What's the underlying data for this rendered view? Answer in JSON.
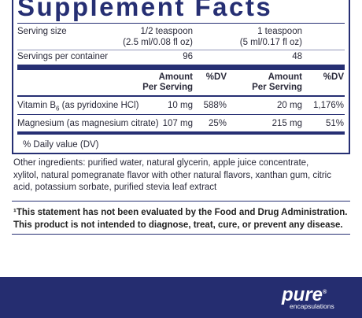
{
  "title": "Supplement Facts",
  "serving": {
    "label": "Serving size",
    "a_line1": "1/2 teaspoon",
    "a_line2": "(2.5 ml/0.08 fl oz)",
    "b_line1": "1 teaspoon",
    "b_line2": "(5 ml/0.17 fl oz)"
  },
  "servings_per_container": {
    "label": "Servings per container",
    "a": "96",
    "b": "48"
  },
  "header": {
    "amount_line1": "Amount",
    "amount_line2": "Per Serving",
    "dv": "%DV"
  },
  "rows": [
    {
      "name": "Vitamin B",
      "subscript": "6",
      "name_rest": " (as pyridoxine HCl)",
      "a_amount": "10 mg",
      "a_dv": "588%",
      "b_amount": "20 mg",
      "b_dv": "1,176%"
    },
    {
      "name": "Magnesium (as magnesium citrate)",
      "a_amount": "107 mg",
      "a_dv": "25%",
      "b_amount": "215 mg",
      "b_dv": "51%"
    }
  ],
  "dv_note": "% Daily value (DV)",
  "other_ingredients": "Other ingredients: purified water, natural glycerin, apple juice concentrate, xylitol, natural pomegranate flavor with other natural flavors, xanthan gum, citric acid, potassium sorbate, purified stevia leaf extract",
  "statement": "¹This statement has not been evaluated by the Food and Drug Administration. This product is not intended to diagnose, treat, cure, or prevent any disease.",
  "brand": {
    "name": "pure",
    "tagline": "encapsulations",
    "mark": "®"
  }
}
